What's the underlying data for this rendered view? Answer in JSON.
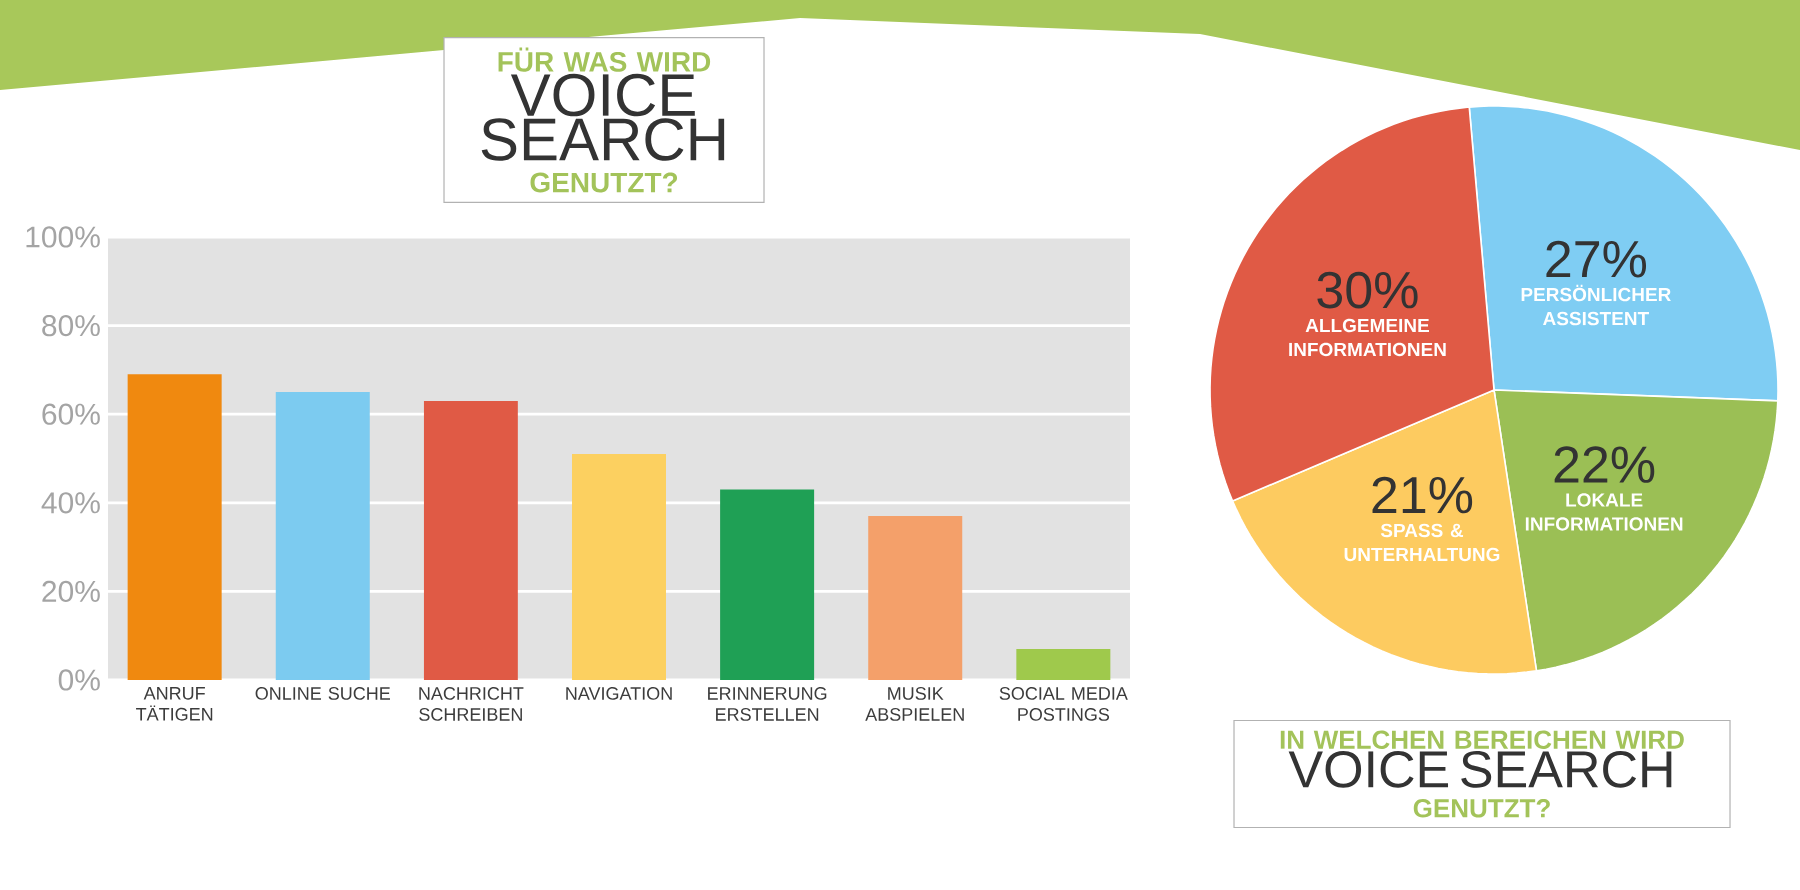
{
  "chart_data": [
    {
      "type": "bar",
      "title": "FÜR WAS WIRD **VOICE SEARCH** GENUTZT?",
      "categories": [
        "ANRUF TÄTIGEN",
        "ONLINE SUCHE",
        "NACHRICHT SCHREIBEN",
        "NAVIGATION",
        "ERINNERUNG ERSTELLEN",
        "MUSIK ABSPIELEN",
        "SOCIAL MEDIA POSTINGS"
      ],
      "values": [
        69,
        65,
        63,
        51,
        43,
        37,
        7
      ],
      "colors": [
        "#f0890f",
        "#7ccbf0",
        "#e05a45",
        "#fcd060",
        "#1fa055",
        "#f4a06a",
        "#9fc94c"
      ],
      "ylim": [
        0,
        100
      ],
      "yticks": [
        {
          "value": 0,
          "label": "0%"
        },
        {
          "value": 20,
          "label": "20%"
        },
        {
          "value": 40,
          "label": "40%"
        },
        {
          "value": 60,
          "label": "60%"
        },
        {
          "value": 80,
          "label": "80%"
        },
        {
          "value": 100,
          "label": "100%"
        }
      ],
      "grid": "y"
    },
    {
      "type": "pie",
      "title": "IN WELCHEN BEREICHEN WIRD **VOICE SEARCH** GENUTZT?",
      "categories": [
        "PERSÖNLICHER ASSISTENT",
        "LOKALE INFORMATIONEN",
        "SPASS & UNTERHALTUNG",
        "ALLGEMEINE INFORMATIONEN"
      ],
      "values": [
        27,
        22,
        21,
        30
      ],
      "colors": [
        "#7fcdf3",
        "#9bbf55",
        "#fdcb60",
        "#e05a45"
      ],
      "value_labels": [
        "27%",
        "22%",
        "21%",
        "30%"
      ]
    }
  ]
}
